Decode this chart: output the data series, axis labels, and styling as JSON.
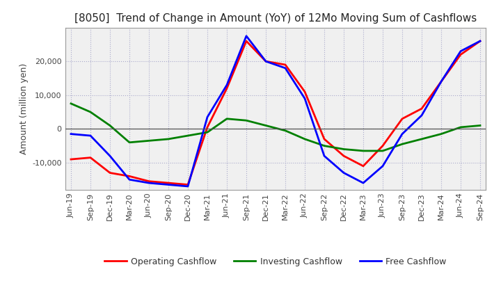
{
  "title": "[8050]  Trend of Change in Amount (YoY) of 12Mo Moving Sum of Cashflows",
  "ylabel": "Amount (million yen)",
  "labels": [
    "Jun-19",
    "Sep-19",
    "Dec-19",
    "Mar-20",
    "Jun-20",
    "Sep-20",
    "Dec-20",
    "Mar-21",
    "Jun-21",
    "Sep-21",
    "Dec-21",
    "Mar-22",
    "Jun-22",
    "Sep-22",
    "Dec-22",
    "Mar-23",
    "Jun-23",
    "Sep-23",
    "Dec-23",
    "Mar-24",
    "Jun-24",
    "Sep-24"
  ],
  "operating": [
    -9000,
    -8500,
    -13000,
    -14000,
    -15500,
    -16000,
    -16500,
    500,
    12000,
    26000,
    20000,
    19000,
    11000,
    -3000,
    -8000,
    -11000,
    -5000,
    3000,
    6000,
    14000,
    22000,
    26000
  ],
  "investing": [
    7500,
    5000,
    1000,
    -4000,
    -3500,
    -3000,
    -2000,
    -1000,
    3000,
    2500,
    1000,
    -500,
    -3000,
    -5000,
    -6000,
    -6500,
    -6500,
    -4500,
    -3000,
    -1500,
    500,
    1000
  ],
  "free": [
    -1500,
    -2000,
    -8000,
    -15000,
    -16000,
    -16500,
    -17000,
    3500,
    13000,
    27500,
    20000,
    18000,
    9000,
    -8000,
    -13000,
    -16000,
    -11000,
    -1500,
    4000,
    14000,
    23000,
    26000
  ],
  "operating_color": "#ff0000",
  "investing_color": "#008000",
  "free_color": "#0000ff",
  "background_color": "#ffffff",
  "plot_bg_color": "#f0f0f0",
  "grid_color": "#aaaacc",
  "ylim": [
    -18000,
    30000
  ],
  "yticks": [
    -10000,
    0,
    10000,
    20000
  ],
  "title_fontsize": 11,
  "ylabel_fontsize": 9,
  "tick_fontsize": 8,
  "legend_fontsize": 9,
  "linewidth": 2.0
}
